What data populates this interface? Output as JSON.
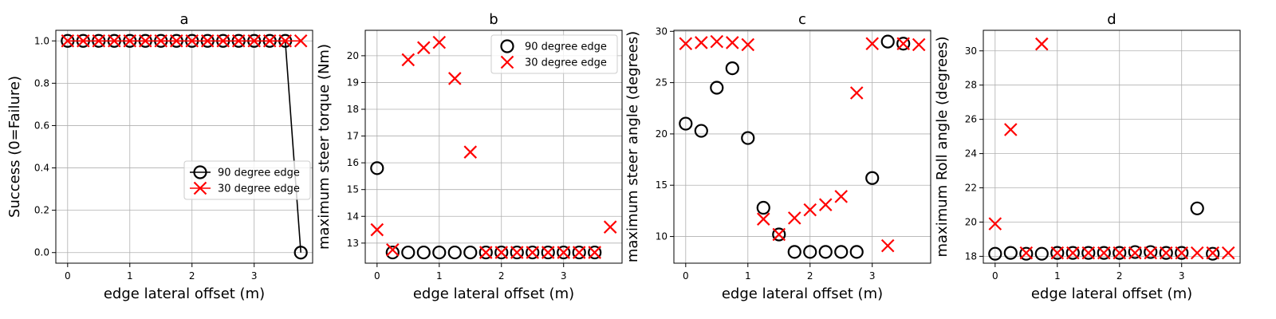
{
  "colors": {
    "circle_series": "#000000",
    "x_series": "#ff0000",
    "grid": "#b0b0b0"
  },
  "chart_data": [
    {
      "type": "line",
      "title": "a",
      "xlabel": "edge lateral offset (m)",
      "ylabel": "Success (0=Failure)",
      "xlim": [
        -0.19,
        3.94
      ],
      "ylim": [
        -0.05,
        1.05
      ],
      "xticks": [
        0,
        1,
        2,
        3
      ],
      "yticks": [
        0.0,
        0.2,
        0.4,
        0.6,
        0.8,
        1.0
      ],
      "ytick_labels": [
        "0.0",
        "0.2",
        "0.4",
        "0.6",
        "0.8",
        "1.0"
      ],
      "grid": true,
      "legend": "center-right",
      "series": [
        {
          "name": "90 degree edge",
          "marker": "circle",
          "line": true,
          "x": [
            0,
            0.25,
            0.5,
            0.75,
            1.0,
            1.25,
            1.5,
            1.75,
            2.0,
            2.25,
            2.5,
            2.75,
            3.0,
            3.25,
            3.5,
            3.75
          ],
          "y": [
            1,
            1,
            1,
            1,
            1,
            1,
            1,
            1,
            1,
            1,
            1,
            1,
            1,
            1,
            1,
            0
          ]
        },
        {
          "name": "30 degree edge",
          "marker": "x",
          "line": true,
          "x": [
            0,
            0.25,
            0.5,
            0.75,
            1.0,
            1.25,
            1.5,
            1.75,
            2.0,
            2.25,
            2.5,
            2.75,
            3.0,
            3.25,
            3.5,
            3.75
          ],
          "y": [
            1,
            1,
            1,
            1,
            1,
            1,
            1,
            1,
            1,
            1,
            1,
            1,
            1,
            1,
            1,
            1
          ]
        }
      ]
    },
    {
      "type": "scatter",
      "title": "b",
      "xlabel": "edge lateral offset (m)",
      "ylabel": "maximum steer torque (Nm)",
      "xlim": [
        -0.19,
        3.94
      ],
      "ylim": [
        12.25,
        20.95
      ],
      "xticks": [
        0,
        1,
        2,
        3
      ],
      "yticks": [
        13,
        14,
        15,
        16,
        17,
        18,
        19,
        20
      ],
      "grid": true,
      "legend": "top-right",
      "series": [
        {
          "name": "90 degree edge",
          "marker": "circle",
          "x": [
            0,
            0.25,
            0.5,
            0.75,
            1.0,
            1.25,
            1.5,
            1.75,
            2.0,
            2.25,
            2.5,
            2.75,
            3.0,
            3.25,
            3.5
          ],
          "y": [
            15.8,
            12.65,
            12.65,
            12.65,
            12.65,
            12.65,
            12.65,
            12.65,
            12.65,
            12.65,
            12.65,
            12.65,
            12.65,
            12.65,
            12.65
          ]
        },
        {
          "name": "30 degree edge",
          "marker": "x",
          "x": [
            0,
            0.25,
            0.5,
            0.75,
            1.0,
            1.25,
            1.5,
            1.75,
            2.0,
            2.25,
            2.5,
            2.75,
            3.0,
            3.25,
            3.5,
            3.75
          ],
          "y": [
            13.5,
            12.75,
            19.85,
            20.3,
            20.5,
            19.15,
            16.4,
            12.65,
            12.65,
            12.65,
            12.65,
            12.65,
            12.65,
            12.65,
            12.65,
            13.6
          ]
        }
      ]
    },
    {
      "type": "scatter",
      "title": "c",
      "xlabel": "edge lateral offset (m)",
      "ylabel": "maximum steer angle (degrees)",
      "xlim": [
        -0.19,
        3.94
      ],
      "ylim": [
        7.4,
        30.1
      ],
      "xticks": [
        0,
        1,
        2,
        3
      ],
      "yticks": [
        10,
        15,
        20,
        25,
        30
      ],
      "grid": true,
      "legend": "none",
      "series": [
        {
          "name": "90 degree edge",
          "marker": "circle",
          "x": [
            0,
            0.25,
            0.5,
            0.75,
            1.0,
            1.25,
            1.5,
            1.75,
            2.0,
            2.25,
            2.5,
            2.75,
            3.0,
            3.25,
            3.5
          ],
          "y": [
            21.0,
            20.3,
            24.5,
            26.4,
            19.6,
            12.8,
            10.2,
            8.5,
            8.5,
            8.5,
            8.5,
            8.5,
            15.7,
            29.0,
            28.8
          ]
        },
        {
          "name": "30 degree edge",
          "marker": "x",
          "x": [
            0,
            0.25,
            0.5,
            0.75,
            1.0,
            1.25,
            1.5,
            1.75,
            2.0,
            2.25,
            2.5,
            2.75,
            3.0,
            3.25,
            3.5,
            3.75
          ],
          "y": [
            28.8,
            28.9,
            29.0,
            28.9,
            28.7,
            11.7,
            10.2,
            11.8,
            12.6,
            13.1,
            13.9,
            24.0,
            28.8,
            9.1,
            28.8,
            28.7
          ]
        }
      ]
    },
    {
      "type": "scatter",
      "title": "d",
      "xlabel": "edge lateral offset (m)",
      "ylabel": "maximum Roll angle (degrees)",
      "xlim": [
        -0.19,
        3.94
      ],
      "ylim": [
        17.6,
        31.2
      ],
      "xticks": [
        0,
        1,
        2,
        3
      ],
      "yticks": [
        18,
        20,
        22,
        24,
        26,
        28,
        30
      ],
      "grid": true,
      "legend": "none",
      "series": [
        {
          "name": "90 degree edge",
          "marker": "circle",
          "x": [
            0,
            0.25,
            0.5,
            0.75,
            1.0,
            1.25,
            1.5,
            1.75,
            2.0,
            2.25,
            2.5,
            2.75,
            3.0,
            3.25,
            3.5
          ],
          "y": [
            18.15,
            18.2,
            18.15,
            18.15,
            18.2,
            18.2,
            18.2,
            18.2,
            18.2,
            18.25,
            18.25,
            18.2,
            18.2,
            20.8,
            18.15
          ]
        },
        {
          "name": "30 degree edge",
          "marker": "x",
          "x": [
            0,
            0.25,
            0.5,
            0.75,
            1.0,
            1.25,
            1.5,
            1.75,
            2.0,
            2.25,
            2.5,
            2.75,
            3.0,
            3.25,
            3.5,
            3.75
          ],
          "y": [
            19.9,
            25.4,
            18.2,
            30.4,
            18.2,
            18.2,
            18.2,
            18.2,
            18.2,
            18.2,
            18.2,
            18.2,
            18.2,
            18.2,
            18.2,
            18.2
          ]
        }
      ]
    }
  ]
}
